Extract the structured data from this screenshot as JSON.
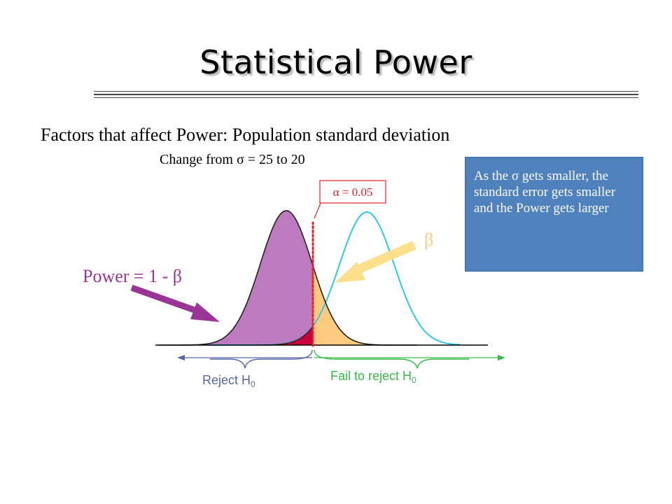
{
  "slide": {
    "title": "Statistical Power",
    "subtitle": "Factors that affect Power:  Population standard deviation",
    "change_text": "Change from σ = 25 to 20",
    "note": "As the σ gets smaller, the standard error gets smaller and the Power gets larger"
  },
  "diagram": {
    "alpha_label": "α = 0.05",
    "beta_label": "β",
    "power_label": "Power = 1 - β",
    "reject_label": "Reject H",
    "fail_label": "Fail to reject H",
    "subscript": "0"
  },
  "colors": {
    "power_fill": "#be7abe",
    "beta_fill": "#fccb80",
    "alpha_fill": "#c8003c",
    "alt_curve": "#30c8e8",
    "power_arrow": "#9a3496",
    "beta_arrow": "#fce08c",
    "critical_line": "#e8202c",
    "note_bg": "#4f81bd"
  }
}
